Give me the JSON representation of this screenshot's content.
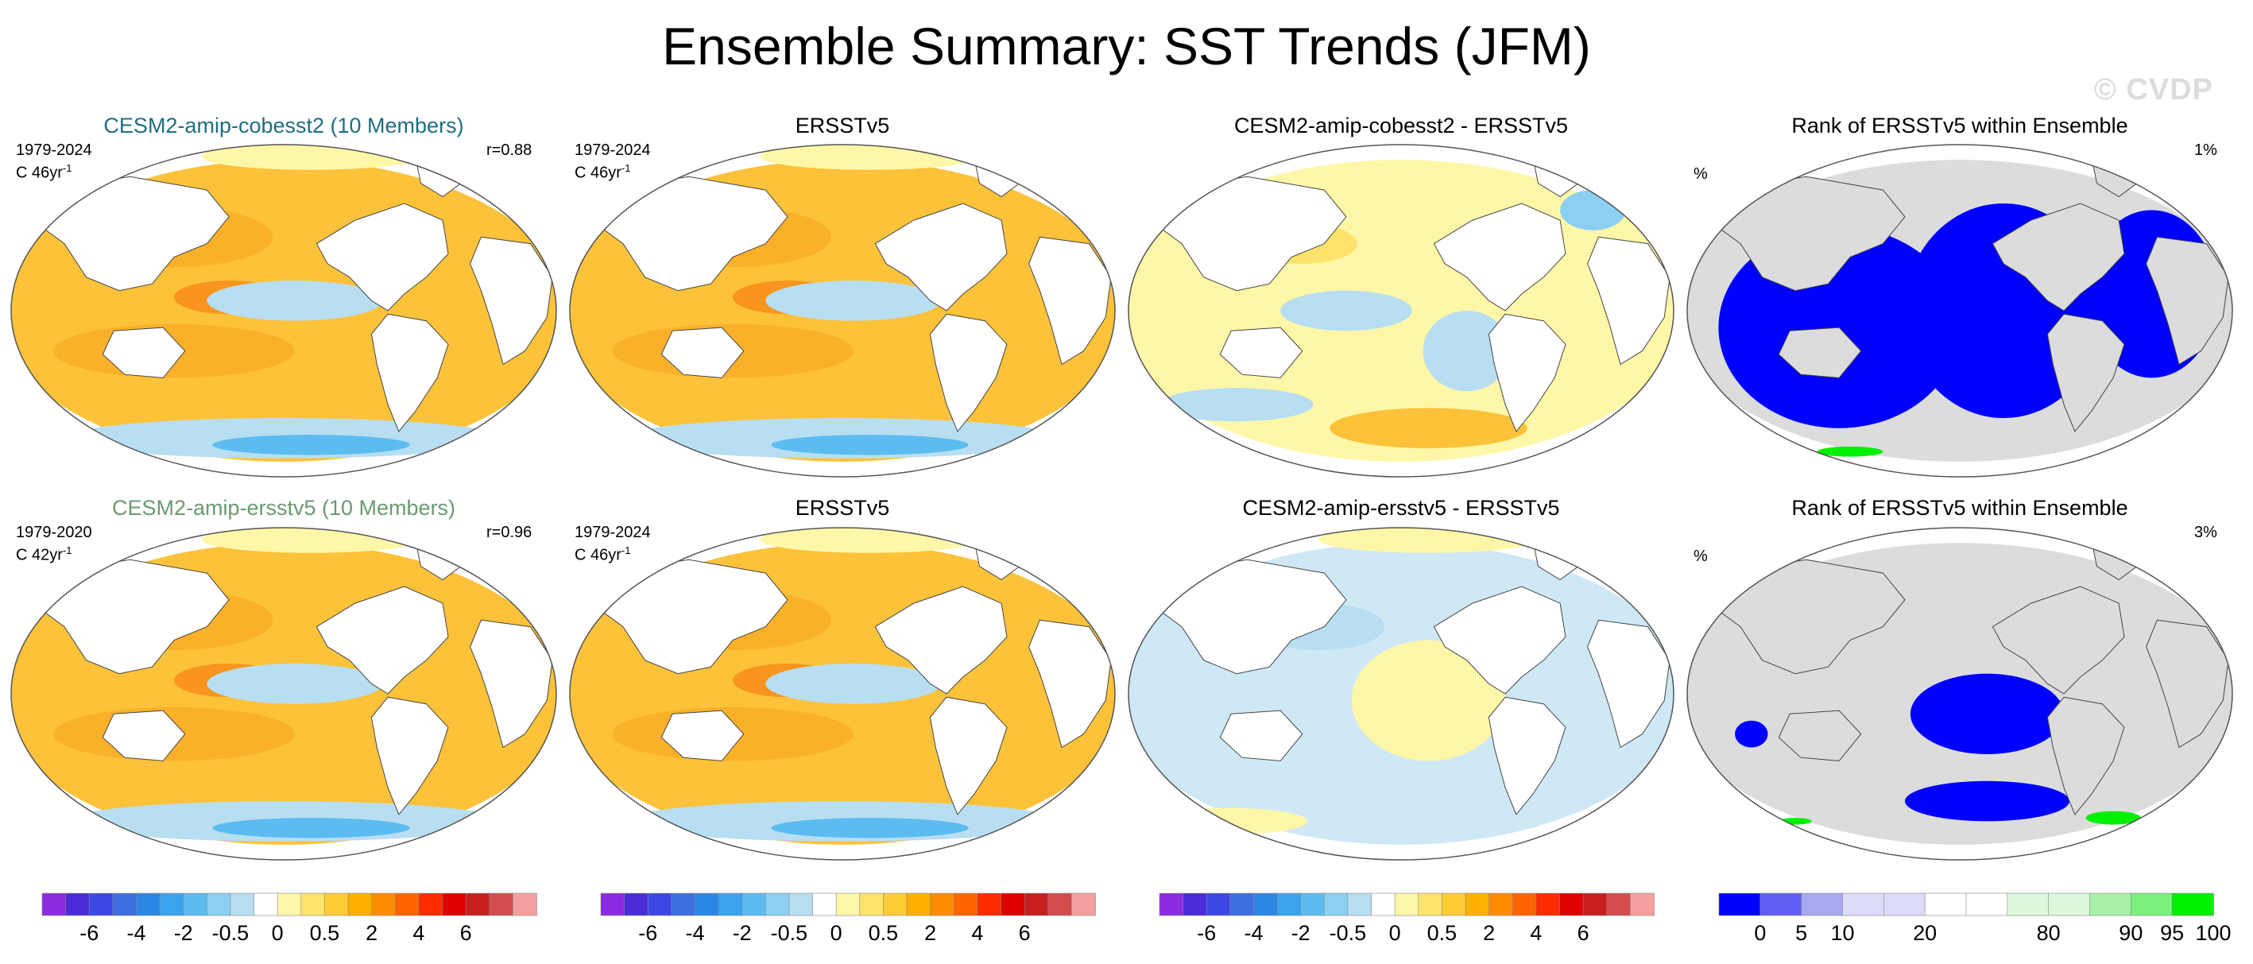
{
  "title": "Ensemble Summary: SST Trends (JFM)",
  "watermark": "© CVDP",
  "rows": [
    {
      "panels": [
        {
          "title": "CESM2-amip-cobesst2 (10 Members)",
          "style": "model",
          "period": "1979-2024",
          "trend": "C 46yr",
          "sup": "-1",
          "corr": "r=0.88",
          "kind": "trend"
        },
        {
          "title": "ERSSTv5",
          "style": "obs",
          "period": "1979-2024",
          "trend": "C 46yr",
          "sup": "-1",
          "corr": "",
          "kind": "trend"
        },
        {
          "title": "CESM2-amip-cobesst2 - ERSSTv5",
          "style": "obs",
          "period": "",
          "trend": "",
          "sup": "",
          "corr": "",
          "kind": "diff"
        },
        {
          "title": "Rank of ERSSTv5 within Ensemble",
          "style": "obs",
          "unit": "%",
          "pct": "1%",
          "kind": "rank"
        }
      ]
    },
    {
      "panels": [
        {
          "title": "CESM2-amip-ersstv5 (10 Members)",
          "style": "model2",
          "period": "1979-2020",
          "trend": "C 42yr",
          "sup": "-1",
          "corr": "r=0.96",
          "kind": "trend"
        },
        {
          "title": "ERSSTv5",
          "style": "obs",
          "period": "1979-2024",
          "trend": "C 46yr",
          "sup": "-1",
          "corr": "",
          "kind": "trend"
        },
        {
          "title": "CESM2-amip-ersstv5 - ERSSTv5",
          "style": "obs",
          "period": "",
          "trend": "",
          "sup": "",
          "corr": "",
          "kind": "diff2"
        },
        {
          "title": "Rank of ERSSTv5 within Ensemble",
          "style": "obs",
          "unit": "%",
          "pct": "3%",
          "kind": "rank2"
        }
      ]
    }
  ],
  "colorbars": {
    "trend": {
      "colors": [
        "#8a2be2",
        "#4b2bd8",
        "#3c48e6",
        "#3f6ee0",
        "#2b86e6",
        "#3aa4ee",
        "#5cbcf0",
        "#8ccff2",
        "#b8def2",
        "#ffffff",
        "#fff7a8",
        "#ffe26b",
        "#ffcc33",
        "#ffb000",
        "#ff8c00",
        "#ff6400",
        "#ff2c00",
        "#e00000",
        "#c81e1e",
        "#d44c4c",
        "#f4a0a0"
      ],
      "labels": [
        "-6",
        "-4",
        "-2",
        "-0.5",
        "0",
        "0.5",
        "2",
        "4",
        "6"
      ],
      "label_positions": [
        2,
        4,
        6,
        8,
        10,
        12,
        14,
        16,
        18
      ]
    },
    "rank": {
      "colors": [
        "#0000ff",
        "#5e5ef5",
        "#a8a8f0",
        "#dcdcf8",
        "#dcdcf8",
        "#ffffff",
        "#ffffff",
        "#dcf8dc",
        "#dcf8dc",
        "#a8f0a8",
        "#7cf07c",
        "#00f000"
      ],
      "labels": [
        "0",
        "5",
        "10",
        "20",
        "80",
        "90",
        "95",
        "100"
      ],
      "label_positions": [
        1,
        2,
        3,
        5,
        8,
        10,
        11,
        12
      ]
    }
  }
}
